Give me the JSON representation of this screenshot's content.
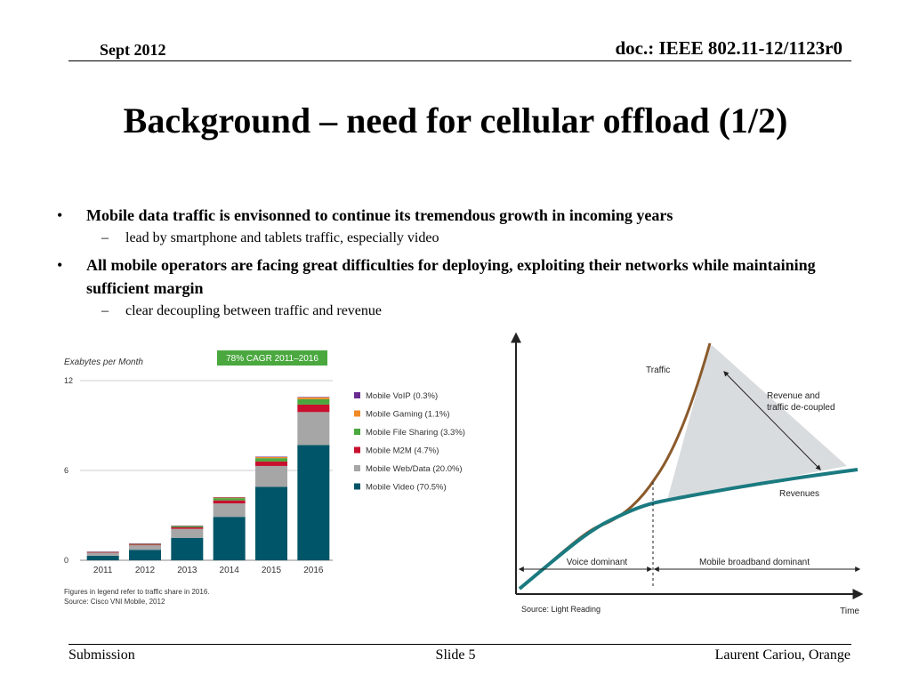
{
  "header": {
    "date": "Sept 2012",
    "doc_id": "doc.: IEEE 802.11-12/1123r0"
  },
  "slide": {
    "title": "Background – need for cellular offload (1/2)",
    "bullets": [
      {
        "text": "Mobile data traffic is envisonned to continue its tremendous growth in incoming years",
        "sub": [
          "lead by smartphone and tablets traffic, especially video"
        ]
      },
      {
        "text": "All mobile operators are facing great difficulties for deploying, exploiting their networks while maintaining sufficient margin",
        "sub": [
          "clear decoupling between traffic and revenue"
        ]
      }
    ]
  },
  "chart_data": [
    {
      "type": "bar",
      "stacked": true,
      "ylabel": "Exabytes per Month",
      "ylim": [
        0,
        12
      ],
      "yticks": [
        "0",
        "6",
        "12"
      ],
      "badge": "78% CAGR 2011–2016",
      "categories": [
        "2011",
        "2012",
        "2013",
        "2014",
        "2015",
        "2016"
      ],
      "series": [
        {
          "name": "Mobile Video (70.5%)",
          "color": "#005568",
          "values": [
            0.3,
            0.7,
            1.5,
            2.9,
            4.9,
            7.7
          ]
        },
        {
          "name": "Mobile Web/Data (20.0%)",
          "color": "#a6a6a6",
          "values": [
            0.2,
            0.3,
            0.6,
            0.9,
            1.4,
            2.2
          ]
        },
        {
          "name": "Mobile M2M (4.7%)",
          "color": "#c8102e",
          "values": [
            0.03,
            0.05,
            0.1,
            0.2,
            0.3,
            0.5
          ]
        },
        {
          "name": "Mobile File Sharing (3.3%)",
          "color": "#4aa83f",
          "values": [
            0.03,
            0.05,
            0.08,
            0.15,
            0.22,
            0.36
          ]
        },
        {
          "name": "Mobile Gaming (1.1%)",
          "color": "#f08a24",
          "values": [
            0.01,
            0.01,
            0.03,
            0.05,
            0.08,
            0.12
          ]
        },
        {
          "name": "Mobile VoIP (0.3%)",
          "color": "#6b2c91",
          "values": [
            0.005,
            0.01,
            0.01,
            0.02,
            0.02,
            0.03
          ]
        }
      ],
      "notes": [
        "Figures in legend refer to traffic share in 2016.",
        "Source: Cisco VNI Mobile, 2012"
      ]
    },
    {
      "type": "line",
      "xlabel": "Time",
      "series": [
        {
          "name": "Traffic",
          "color": "#8b5a2b"
        },
        {
          "name": "Revenues",
          "color": "#1a7a80"
        }
      ],
      "annotations": [
        "Revenue and",
        "traffic de-coupled"
      ],
      "phases": [
        "Voice dominant",
        "Mobile broadband dominant"
      ],
      "source": "Source: Light Reading"
    }
  ],
  "footer": {
    "left": "Submission",
    "center": "Slide 5",
    "right": "Laurent Cariou, Orange"
  }
}
